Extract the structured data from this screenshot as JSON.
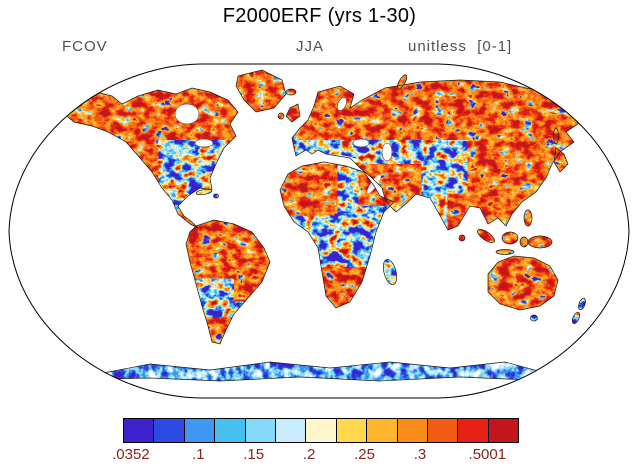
{
  "title": "F2000ERF (yrs 1-30)",
  "header": {
    "variable": "FCOV",
    "season": "JJA",
    "units": "unitless  [0-1]"
  },
  "chart_data": {
    "type": "heatmap",
    "title": "F2000ERF (yrs 1-30)",
    "variable": "FCOV",
    "season": "JJA",
    "units": "unitless",
    "value_range": [
      0,
      1
    ],
    "projection": "global world map, Robinson-style outline, ocean masked white, mottled field over land",
    "field_character": "land cells span full palette; arctic Canada, Siberia, Amazon, Australia, SE Asia predominantly red/orange; central Africa, eastern N. America, India, central Eurasia predominantly blue; Antarctica blue/white fringe",
    "colorbar": {
      "orientation": "horizontal",
      "tick_labels": [
        ".0352",
        ".1",
        ".15",
        ".2",
        ".25",
        ".3",
        ".5001"
      ],
      "tick_values": [
        0.0352,
        0.1,
        0.15,
        0.2,
        0.25,
        0.3,
        0.5001
      ],
      "colors": [
        "#3d23cc",
        "#2b49e3",
        "#3e97f2",
        "#45c0f0",
        "#86d9f7",
        "#c8ecfb",
        "#fdf6cd",
        "#fed94f",
        "#feb42c",
        "#fb8b1b",
        "#f35a14",
        "#e62214",
        "#c3161c"
      ],
      "label_color": "#8b2218"
    }
  }
}
